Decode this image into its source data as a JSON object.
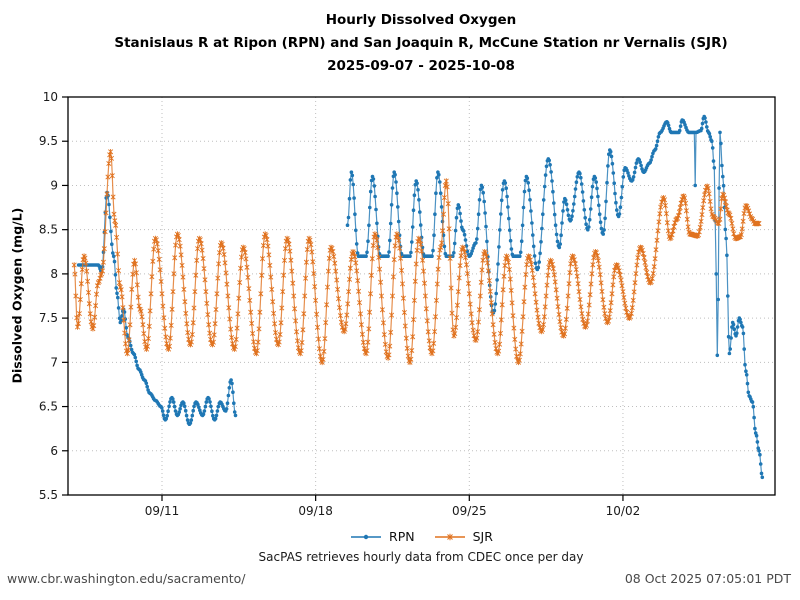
{
  "title": {
    "line1": "Hourly Dissolved Oxygen",
    "line2": "Stanislaus R at Ripon (RPN) and San Joaquin R, McCune Station nr Vernalis (SJR)",
    "line3": "2025-09-07 - 2025-10-08"
  },
  "footer": {
    "caption": "SacPAS retrieves hourly data from CDEC once per day",
    "left": "www.cbr.washington.edu/sacramento/",
    "right": "08 Oct 2025 07:05:01 PDT"
  },
  "legend": {
    "items": [
      "RPN",
      "SJR"
    ]
  },
  "chart_data": {
    "type": "line",
    "title": "Hourly Dissolved Oxygen",
    "xlabel": "",
    "ylabel": "Dissolved Oxygen (mg/L)",
    "ylim": [
      5.5,
      10
    ],
    "ytick_step": 0.5,
    "yticks": [
      5.5,
      6,
      6.5,
      7,
      7.5,
      8,
      8.5,
      9,
      9.5,
      10
    ],
    "x_unit": "days since 2025-09-07 00:00",
    "x_range_days": [
      -0.3,
      32.0
    ],
    "xticks": [
      {
        "day": 4,
        "label": "09/11"
      },
      {
        "day": 11,
        "label": "09/18"
      },
      {
        "day": 18,
        "label": "09/25"
      },
      {
        "day": 25,
        "label": "10/02"
      }
    ],
    "grid": "dotted gray at every y tick and x tick",
    "legend_position": "below plot, centered",
    "sampling_note": "hourly sensor data; series reconstructed from anchor points [day, mg/L] read off the plot (daily extremes and inflections), cosine-interpolated at 1-hour steps",
    "series": [
      {
        "name": "RPN",
        "station": "Stanislaus R at Ripon",
        "color": "#1f77b4",
        "marker": "circle",
        "segments": [
          [
            [
              0.2,
              8.1
            ],
            [
              1.1,
              8.1
            ],
            [
              1.25,
              8.02
            ],
            [
              1.5,
              8.92
            ],
            [
              1.8,
              8.2
            ],
            [
              1.95,
              7.78
            ],
            [
              2.1,
              7.45
            ],
            [
              2.25,
              7.6
            ],
            [
              2.45,
              7.28
            ],
            [
              2.7,
              7.1
            ],
            [
              2.95,
              6.92
            ],
            [
              3.2,
              6.8
            ],
            [
              3.45,
              6.65
            ],
            [
              3.7,
              6.57
            ],
            [
              3.95,
              6.5
            ],
            [
              4.15,
              6.35
            ],
            [
              4.45,
              6.6
            ],
            [
              4.7,
              6.4
            ],
            [
              4.95,
              6.55
            ],
            [
              5.25,
              6.3
            ],
            [
              5.55,
              6.55
            ],
            [
              5.85,
              6.4
            ],
            [
              6.1,
              6.6
            ],
            [
              6.4,
              6.35
            ],
            [
              6.65,
              6.55
            ],
            [
              6.9,
              6.45
            ],
            [
              7.15,
              6.8
            ],
            [
              7.35,
              6.4
            ]
          ],
          [
            [
              12.45,
              8.55
            ],
            [
              12.63,
              9.15
            ],
            [
              12.95,
              8.2
            ],
            [
              13.3,
              8.2
            ],
            [
              13.59,
              9.1
            ],
            [
              13.95,
              8.2
            ],
            [
              14.3,
              8.2
            ],
            [
              14.58,
              9.15
            ],
            [
              14.95,
              8.2
            ],
            [
              15.3,
              8.2
            ],
            [
              15.58,
              9.05
            ],
            [
              15.95,
              8.2
            ],
            [
              16.3,
              8.2
            ],
            [
              16.57,
              9.15
            ],
            [
              16.95,
              8.2
            ],
            [
              17.25,
              8.2
            ],
            [
              17.5,
              8.78
            ],
            [
              17.7,
              8.5
            ],
            [
              18.0,
              8.2
            ],
            [
              18.3,
              8.35
            ],
            [
              18.55,
              9.0
            ],
            [
              19.1,
              7.56
            ],
            [
              19.6,
              9.05
            ],
            [
              20.0,
              8.2
            ],
            [
              20.3,
              8.2
            ],
            [
              20.6,
              9.1
            ],
            [
              21.1,
              8.05
            ],
            [
              21.6,
              9.3
            ],
            [
              22.1,
              8.3
            ],
            [
              22.35,
              8.85
            ],
            [
              22.6,
              8.6
            ],
            [
              23.0,
              9.15
            ],
            [
              23.4,
              8.5
            ],
            [
              23.7,
              9.1
            ],
            [
              24.1,
              8.45
            ],
            [
              24.4,
              9.4
            ],
            [
              24.8,
              8.65
            ],
            [
              25.1,
              9.2
            ],
            [
              25.4,
              9.05
            ],
            [
              25.7,
              9.3
            ],
            [
              25.95,
              9.15
            ],
            [
              26.2,
              9.25
            ],
            [
              26.45,
              9.4
            ],
            [
              26.7,
              9.6
            ],
            [
              27.0,
              9.72
            ],
            [
              27.2,
              9.6
            ],
            [
              27.55,
              9.6
            ],
            [
              27.7,
              9.74
            ],
            [
              28.0,
              9.6
            ],
            [
              28.25,
              9.6
            ],
            [
              28.29,
              9.0
            ],
            [
              28.33,
              9.6
            ],
            [
              28.55,
              9.62
            ],
            [
              28.7,
              9.78
            ],
            [
              28.9,
              9.6
            ],
            [
              29.05,
              9.5
            ],
            [
              29.16,
              9.2
            ],
            [
              29.25,
              8.0
            ],
            [
              29.3,
              7.08
            ],
            [
              29.42,
              9.6
            ],
            [
              29.55,
              9.1
            ],
            [
              29.7,
              8.4
            ],
            [
              29.85,
              7.1
            ],
            [
              30.0,
              7.45
            ],
            [
              30.15,
              7.3
            ],
            [
              30.3,
              7.5
            ],
            [
              30.45,
              7.4
            ],
            [
              30.6,
              6.9
            ],
            [
              30.75,
              6.62
            ],
            [
              30.9,
              6.55
            ],
            [
              31.05,
              6.2
            ],
            [
              31.2,
              6.0
            ],
            [
              31.35,
              5.7
            ]
          ]
        ]
      },
      {
        "name": "SJR",
        "station": "San Joaquin R, McCune Station nr Vernalis",
        "color": "#e0721f",
        "marker": "star",
        "segments": [
          [
            [
              0.0,
              8.1
            ],
            [
              0.15,
              7.4
            ],
            [
              0.45,
              8.2
            ],
            [
              0.85,
              7.38
            ],
            [
              1.1,
              7.9
            ],
            [
              1.25,
              8.0
            ],
            [
              1.66,
              9.38
            ],
            [
              1.85,
              8.6
            ],
            [
              2.1,
              7.85
            ],
            [
              2.42,
              7.1
            ],
            [
              2.75,
              8.15
            ],
            [
              3.0,
              7.6
            ],
            [
              3.3,
              7.15
            ],
            [
              3.7,
              8.4
            ],
            [
              4.3,
              7.15
            ],
            [
              4.7,
              8.45
            ],
            [
              5.3,
              7.2
            ],
            [
              5.7,
              8.4
            ],
            [
              6.3,
              7.2
            ],
            [
              6.7,
              8.35
            ],
            [
              7.3,
              7.15
            ],
            [
              7.7,
              8.3
            ],
            [
              8.3,
              7.1
            ],
            [
              8.7,
              8.45
            ],
            [
              9.3,
              7.2
            ],
            [
              9.7,
              8.4
            ],
            [
              10.3,
              7.1
            ],
            [
              10.7,
              8.4
            ],
            [
              11.3,
              7.0
            ],
            [
              11.7,
              8.3
            ],
            [
              12.3,
              7.35
            ],
            [
              12.7,
              8.25
            ],
            [
              13.3,
              7.1
            ],
            [
              13.7,
              8.45
            ],
            [
              14.3,
              7.05
            ],
            [
              14.7,
              8.45
            ],
            [
              15.3,
              7.0
            ],
            [
              15.7,
              8.4
            ],
            [
              16.3,
              7.1
            ],
            [
              16.7,
              8.3
            ],
            [
              16.95,
              9.05
            ],
            [
              17.3,
              7.3
            ],
            [
              17.7,
              8.3
            ],
            [
              18.3,
              7.25
            ],
            [
              18.7,
              8.25
            ],
            [
              19.3,
              7.1
            ],
            [
              19.7,
              8.2
            ],
            [
              20.24,
              7.0
            ],
            [
              20.7,
              8.2
            ],
            [
              21.3,
              7.35
            ],
            [
              21.7,
              8.15
            ],
            [
              22.3,
              7.3
            ],
            [
              22.7,
              8.2
            ],
            [
              23.3,
              7.4
            ],
            [
              23.75,
              8.25
            ],
            [
              24.3,
              7.45
            ],
            [
              24.7,
              8.1
            ],
            [
              25.3,
              7.5
            ],
            [
              25.8,
              8.3
            ],
            [
              26.25,
              7.9
            ],
            [
              26.85,
              8.86
            ],
            [
              27.15,
              8.4
            ],
            [
              27.45,
              8.62
            ],
            [
              27.77,
              8.88
            ],
            [
              28.05,
              8.45
            ],
            [
              28.4,
              8.43
            ],
            [
              28.84,
              8.99
            ],
            [
              29.1,
              8.65
            ],
            [
              29.37,
              8.57
            ],
            [
              29.55,
              8.9
            ],
            [
              29.83,
              8.68
            ],
            [
              30.14,
              8.4
            ],
            [
              30.35,
              8.42
            ],
            [
              30.6,
              8.77
            ],
            [
              30.9,
              8.62
            ],
            [
              31.0,
              8.57
            ],
            [
              31.2,
              8.57
            ]
          ]
        ]
      }
    ]
  }
}
